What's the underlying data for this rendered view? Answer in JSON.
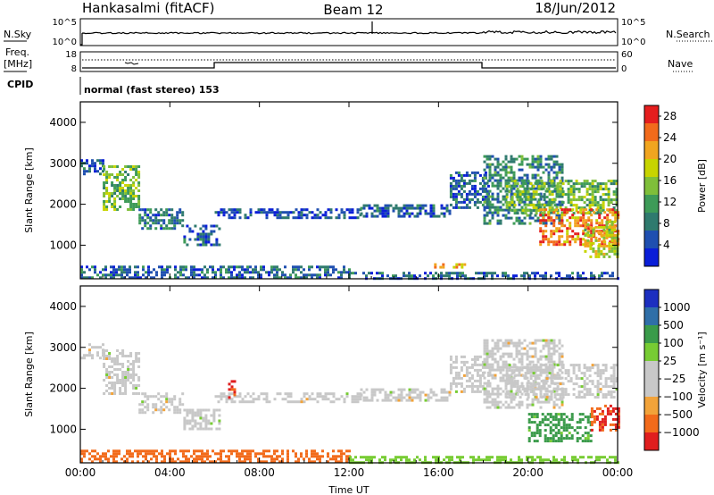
{
  "header": {
    "station": "Hankasalmi (fitACF)",
    "beam": "Beam 12",
    "date": "18/Jun/2012"
  },
  "strips": {
    "noise": {
      "left_label": "N.Sky",
      "right_label": "N.Search",
      "left_ticks": [
        "10^5",
        "10^0"
      ],
      "right_ticks": [
        "10^5",
        "10^0"
      ]
    },
    "freq": {
      "left_label_line1": "Freq.",
      "left_label_line2": "[MHz]",
      "left_ticks": [
        "18",
        "8"
      ],
      "right_label": "Nave",
      "right_ticks": [
        "60",
        "0"
      ]
    },
    "cpid": {
      "left_label": "CPID",
      "text": "normal (fast stereo) 153"
    }
  },
  "colors": {
    "power_scale": [
      "#0a1ed8",
      "#1f4fb0",
      "#2f7a6e",
      "#3e9b58",
      "#7fbf3a",
      "#c7d400",
      "#f1a51f",
      "#f26b1b",
      "#e51e1e"
    ],
    "velocity_scale": [
      "#e01e1e",
      "#f26b1b",
      "#f2a33a",
      "#c8c8c8",
      "#c8c8c8",
      "#77cc33",
      "#3a9b4a",
      "#2f6fa8",
      "#1c2fc0"
    ],
    "ground_scatter": "#c8c8c8"
  },
  "chart_data": [
    {
      "type": "heatmap",
      "panel": "power",
      "xlabel": "",
      "ylabel": "Slant Range [km]",
      "x_ticks": [
        "00:00",
        "04:00",
        "08:00",
        "12:00",
        "16:00",
        "20:00",
        "00:00"
      ],
      "y_ticks": [
        1000,
        2000,
        3000,
        4000
      ],
      "xlim": [
        0,
        24
      ],
      "ylim": [
        180,
        4500
      ],
      "colorbar": {
        "label": "Power [dB]",
        "ticks": [
          4,
          8,
          12,
          16,
          20,
          24,
          28
        ],
        "range": [
          0,
          30
        ]
      },
      "regions": [
        {
          "t0": 0.0,
          "t1": 1.0,
          "r0": 2750,
          "r1": 3100,
          "level": 6
        },
        {
          "t0": 1.0,
          "t1": 2.6,
          "r0": 1850,
          "r1": 2950,
          "level": 14
        },
        {
          "t0": 2.6,
          "t1": 4.6,
          "r0": 1400,
          "r1": 1900,
          "level": 8
        },
        {
          "t0": 4.6,
          "t1": 6.2,
          "r0": 1000,
          "r1": 1500,
          "level": 6
        },
        {
          "t0": 6.0,
          "t1": 12.5,
          "r0": 1650,
          "r1": 1900,
          "level": 5
        },
        {
          "t0": 12.5,
          "t1": 16.5,
          "r0": 1700,
          "r1": 2000,
          "level": 6
        },
        {
          "t0": 16.5,
          "t1": 18.2,
          "r0": 1900,
          "r1": 2800,
          "level": 6
        },
        {
          "t0": 18.0,
          "t1": 21.5,
          "r0": 1500,
          "r1": 3200,
          "level": 9
        },
        {
          "t0": 19.0,
          "t1": 24.0,
          "r0": 1800,
          "r1": 2600,
          "level": 14
        },
        {
          "t0": 20.5,
          "t1": 24.0,
          "r0": 1000,
          "r1": 1900,
          "level": 24
        },
        {
          "t0": 22.5,
          "t1": 24.0,
          "r0": 700,
          "r1": 1600,
          "level": 18
        },
        {
          "t0": 15.8,
          "t1": 17.2,
          "r0": 460,
          "r1": 560,
          "level": 22
        },
        {
          "t0": 0.0,
          "t1": 12.0,
          "r0": 200,
          "r1": 500,
          "level": 7
        },
        {
          "t0": 12.0,
          "t1": 24.0,
          "r0": 200,
          "r1": 350,
          "level": 6
        }
      ]
    },
    {
      "type": "heatmap",
      "panel": "velocity",
      "xlabel": "Time UT",
      "ylabel": "Slant Range [km]",
      "x_ticks": [
        "00:00",
        "04:00",
        "08:00",
        "12:00",
        "16:00",
        "20:00",
        "00:00"
      ],
      "y_ticks": [
        1000,
        2000,
        3000,
        4000
      ],
      "xlim": [
        0,
        24
      ],
      "ylim": [
        180,
        4500
      ],
      "colorbar": {
        "label": "Velocity [m s⁻¹]",
        "ticks": [
          "1000",
          "500",
          "100",
          "25",
          "−25",
          "−100",
          "−500",
          "−1000"
        ]
      },
      "regions": [
        {
          "t0": 0.0,
          "t1": 1.0,
          "r0": 2750,
          "r1": 3100,
          "vel": 0
        },
        {
          "t0": 1.0,
          "t1": 2.6,
          "r0": 1850,
          "r1": 2950,
          "vel": 0
        },
        {
          "t0": 2.6,
          "t1": 4.6,
          "r0": 1400,
          "r1": 1900,
          "vel": 0
        },
        {
          "t0": 4.6,
          "t1": 6.2,
          "r0": 1000,
          "r1": 1500,
          "vel": 0
        },
        {
          "t0": 6.0,
          "t1": 12.5,
          "r0": 1650,
          "r1": 1900,
          "vel": 0
        },
        {
          "t0": 12.5,
          "t1": 16.5,
          "r0": 1700,
          "r1": 2000,
          "vel": 0
        },
        {
          "t0": 16.5,
          "t1": 18.2,
          "r0": 1900,
          "r1": 2800,
          "vel": 0
        },
        {
          "t0": 18.0,
          "t1": 21.5,
          "r0": 1500,
          "r1": 3200,
          "vel": 0
        },
        {
          "t0": 19.0,
          "t1": 24.0,
          "r0": 1800,
          "r1": 2600,
          "vel": 0
        },
        {
          "t0": 20.0,
          "t1": 22.8,
          "r0": 700,
          "r1": 1400,
          "vel": 150
        },
        {
          "t0": 22.8,
          "t1": 24.0,
          "r0": 1000,
          "r1": 1600,
          "vel": -500
        },
        {
          "t0": 0.0,
          "t1": 12.0,
          "r0": 200,
          "r1": 500,
          "vel": -200
        },
        {
          "t0": 12.0,
          "t1": 24.0,
          "r0": 200,
          "r1": 350,
          "vel": 60
        },
        {
          "t0": 6.6,
          "t1": 6.9,
          "r0": 1800,
          "r1": 2200,
          "vel": -600
        }
      ]
    }
  ]
}
